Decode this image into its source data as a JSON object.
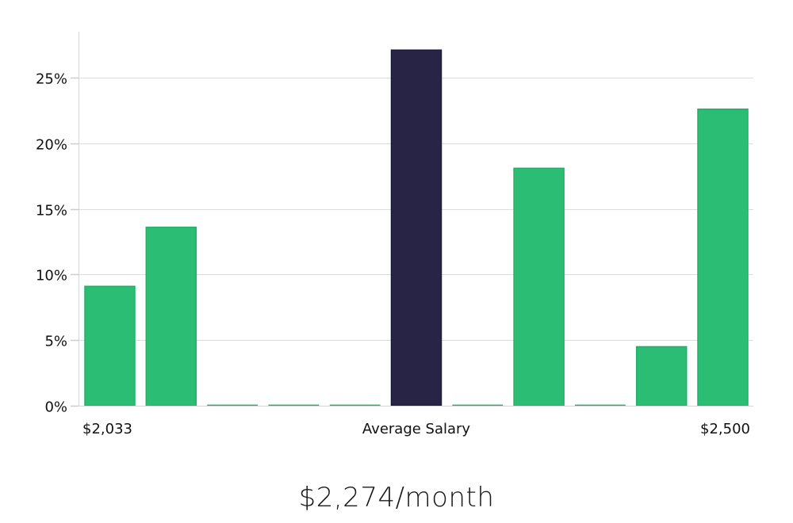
{
  "chart_data": {
    "type": "bar",
    "title": "$2,274/month",
    "xlabel": "Average Salary",
    "ylabel": "",
    "x_tick_labels": [
      "$2,033",
      "Average Salary",
      "$2,500"
    ],
    "categories": [
      "bin1",
      "bin2",
      "bin3",
      "bin4",
      "bin5",
      "bin6",
      "bin7",
      "bin8",
      "bin9",
      "bin10",
      "bin11"
    ],
    "values": [
      9.1,
      13.6,
      0,
      0,
      0,
      27.1,
      0,
      18.1,
      0,
      4.5,
      22.6
    ],
    "highlight_index": 5,
    "ylim": [
      0,
      28.5
    ],
    "yticks": [
      0,
      5,
      10,
      15,
      20,
      25
    ],
    "ytick_labels": [
      "0%",
      "5%",
      "10%",
      "15%",
      "20%",
      "25%"
    ],
    "grid": true,
    "legend": null,
    "colors": {
      "bar": "#2bbd74",
      "highlight": "#272445",
      "grid": "#dddddd",
      "axis": "#cccccc"
    }
  },
  "labels": {
    "x_left": "$2,033",
    "x_center": "Average Salary",
    "x_right": "$2,500",
    "summary": "$2,274/month"
  }
}
